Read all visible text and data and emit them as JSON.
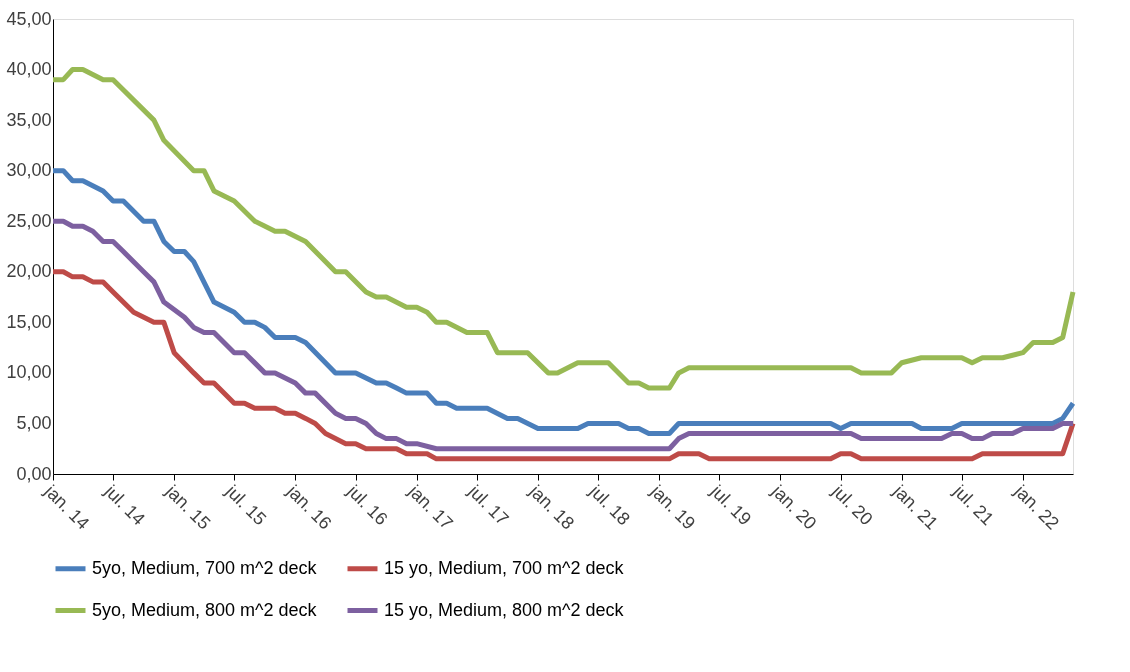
{
  "chart_data": {
    "type": "line",
    "xlim": [
      "2014-01",
      "2022-06"
    ],
    "xticks": [
      {
        "value": "2014-01",
        "label": "jan. 14"
      },
      {
        "value": "2014-07",
        "label": "jul. 14"
      },
      {
        "value": "2015-01",
        "label": "jan. 15"
      },
      {
        "value": "2015-07",
        "label": "jul. 15"
      },
      {
        "value": "2016-01",
        "label": "jan. 16"
      },
      {
        "value": "2016-07",
        "label": "jul. 16"
      },
      {
        "value": "2017-01",
        "label": "jan. 17"
      },
      {
        "value": "2017-07",
        "label": "jul. 17"
      },
      {
        "value": "2018-01",
        "label": "jan. 18"
      },
      {
        "value": "2018-07",
        "label": "jul. 18"
      },
      {
        "value": "2019-01",
        "label": "jan. 19"
      },
      {
        "value": "2019-07",
        "label": "jul. 19"
      },
      {
        "value": "2020-01",
        "label": "jan. 20"
      },
      {
        "value": "2020-07",
        "label": "jul. 20"
      },
      {
        "value": "2021-01",
        "label": "jan. 21"
      },
      {
        "value": "2021-07",
        "label": "jul. 21"
      },
      {
        "value": "2022-01",
        "label": "jan. 22"
      }
    ],
    "ylim": [
      0,
      45
    ],
    "yticks": [
      {
        "value": 0,
        "label": "0,00"
      },
      {
        "value": 5,
        "label": "5,00"
      },
      {
        "value": 10,
        "label": "10,00"
      },
      {
        "value": 15,
        "label": "15,00"
      },
      {
        "value": 20,
        "label": "20,00"
      },
      {
        "value": 25,
        "label": "25,00"
      },
      {
        "value": 30,
        "label": "30,00"
      },
      {
        "value": 35,
        "label": "35,00"
      },
      {
        "value": 40,
        "label": "40,00"
      },
      {
        "value": 45,
        "label": "45,00"
      }
    ],
    "grid": false,
    "legend": "bottom",
    "marker": "none",
    "line_style": "solid",
    "series": [
      {
        "name": "5yo, Medium, 700 m^2 deck",
        "color": "#4a7ebb",
        "x": [
          "2014-01",
          "2014-02",
          "2014-03",
          "2014-04",
          "2014-06",
          "2014-07",
          "2014-08",
          "2014-10",
          "2014-11",
          "2014-12",
          "2015-01",
          "2015-02",
          "2015-03",
          "2015-05",
          "2015-07",
          "2015-08",
          "2015-09",
          "2015-10",
          "2015-11",
          "2016-01",
          "2016-02",
          "2016-05",
          "2016-07",
          "2016-09",
          "2016-10",
          "2016-11",
          "2016-12",
          "2017-02",
          "2017-03",
          "2017-04",
          "2017-05",
          "2017-08",
          "2017-10",
          "2017-11",
          "2018-01",
          "2018-05",
          "2018-06",
          "2018-09",
          "2018-10",
          "2018-11",
          "2018-12",
          "2019-02",
          "2019-03",
          "2020-06",
          "2020-07",
          "2020-08",
          "2021-02",
          "2021-03",
          "2021-06",
          "2021-07",
          "2022-04",
          "2022-05",
          "2022-06"
        ],
        "values": [
          30,
          30,
          29,
          29,
          28,
          27,
          27,
          25,
          25,
          23,
          22,
          22,
          21,
          17,
          16,
          15,
          15,
          14.5,
          13.5,
          13.5,
          13,
          10,
          10,
          9,
          9,
          8.5,
          8,
          8,
          7,
          7,
          6.5,
          6.5,
          5.5,
          5.5,
          4.5,
          4.5,
          5,
          5,
          4.5,
          4.5,
          4,
          4,
          5,
          5,
          4.5,
          5,
          5,
          4.5,
          4.5,
          5,
          5,
          5.5,
          7
        ]
      },
      {
        "name": "15 yo, Medium, 700 m^2 deck",
        "color": "#be4b48",
        "x": [
          "2014-01",
          "2014-02",
          "2014-03",
          "2014-04",
          "2014-05",
          "2014-06",
          "2014-07",
          "2014-09",
          "2014-11",
          "2014-12",
          "2015-01",
          "2015-03",
          "2015-04",
          "2015-05",
          "2015-07",
          "2015-08",
          "2015-09",
          "2015-11",
          "2015-12",
          "2016-01",
          "2016-02",
          "2016-03",
          "2016-04",
          "2016-06",
          "2016-07",
          "2016-08",
          "2016-11",
          "2016-12",
          "2017-02",
          "2017-03",
          "2019-02",
          "2019-03",
          "2019-05",
          "2019-06",
          "2020-06",
          "2020-07",
          "2020-08",
          "2020-09",
          "2021-08",
          "2021-09",
          "2022-05",
          "2022-06"
        ],
        "values": [
          20,
          20,
          19.5,
          19.5,
          19,
          19,
          18,
          16,
          15,
          15,
          12,
          10,
          9,
          9,
          7,
          7,
          6.5,
          6.5,
          6,
          6,
          5.5,
          5,
          4,
          3,
          3,
          2.5,
          2.5,
          2,
          2,
          1.5,
          1.5,
          2,
          2,
          1.5,
          1.5,
          2,
          2,
          1.5,
          1.5,
          2,
          2,
          5
        ]
      },
      {
        "name": "5yo, Medium, 800 m^2 deck",
        "color": "#98b954",
        "x": [
          "2014-01",
          "2014-02",
          "2014-03",
          "2014-04",
          "2014-06",
          "2014-07",
          "2014-11",
          "2014-12",
          "2015-03",
          "2015-04",
          "2015-05",
          "2015-07",
          "2015-09",
          "2015-11",
          "2015-12",
          "2016-02",
          "2016-05",
          "2016-06",
          "2016-08",
          "2016-09",
          "2016-10",
          "2016-12",
          "2017-01",
          "2017-02",
          "2017-03",
          "2017-04",
          "2017-06",
          "2017-08",
          "2017-09",
          "2017-12",
          "2018-02",
          "2018-03",
          "2018-05",
          "2018-08",
          "2018-10",
          "2018-11",
          "2018-12",
          "2019-02",
          "2019-03",
          "2019-04",
          "2020-08",
          "2020-09",
          "2020-12",
          "2021-01",
          "2021-03",
          "2021-07",
          "2021-08",
          "2021-09",
          "2021-11",
          "2022-01",
          "2022-02",
          "2022-04",
          "2022-05",
          "2022-06"
        ],
        "values": [
          39,
          39,
          40,
          40,
          39,
          39,
          35,
          33,
          30,
          30,
          28,
          27,
          25,
          24,
          24,
          23,
          20,
          20,
          18,
          17.5,
          17.5,
          16.5,
          16.5,
          16,
          15,
          15,
          14,
          14,
          12,
          12,
          10,
          10,
          11,
          11,
          9,
          9,
          8.5,
          8.5,
          10,
          10.5,
          10.5,
          10,
          10,
          11,
          11.5,
          11.5,
          11,
          11.5,
          11.5,
          12,
          13,
          13,
          13.5,
          18
        ]
      },
      {
        "name": "15 yo, Medium, 800 m^2 deck",
        "color": "#7d60a0",
        "x": [
          "2014-01",
          "2014-02",
          "2014-03",
          "2014-04",
          "2014-05",
          "2014-06",
          "2014-07",
          "2014-08",
          "2014-10",
          "2014-11",
          "2014-12",
          "2015-02",
          "2015-03",
          "2015-04",
          "2015-05",
          "2015-07",
          "2015-08",
          "2015-10",
          "2015-11",
          "2016-01",
          "2016-02",
          "2016-03",
          "2016-05",
          "2016-06",
          "2016-07",
          "2016-08",
          "2016-09",
          "2016-10",
          "2016-11",
          "2016-12",
          "2017-01",
          "2017-03",
          "2019-02",
          "2019-03",
          "2019-04",
          "2020-08",
          "2020-09",
          "2021-05",
          "2021-06",
          "2021-07",
          "2021-08",
          "2021-09",
          "2021-10",
          "2021-12",
          "2022-01",
          "2022-04",
          "2022-05",
          "2022-06"
        ],
        "values": [
          25,
          25,
          24.5,
          24.5,
          24,
          23,
          23,
          22,
          20,
          19,
          17,
          15.5,
          14.5,
          14,
          14,
          12,
          12,
          10,
          10,
          9,
          8,
          8,
          6,
          5.5,
          5.5,
          5,
          4,
          3.5,
          3.5,
          3,
          3,
          2.5,
          2.5,
          3.5,
          4,
          4,
          3.5,
          3.5,
          4,
          4,
          3.5,
          3.5,
          4,
          4,
          4.5,
          4.5,
          5,
          5
        ]
      }
    ]
  }
}
